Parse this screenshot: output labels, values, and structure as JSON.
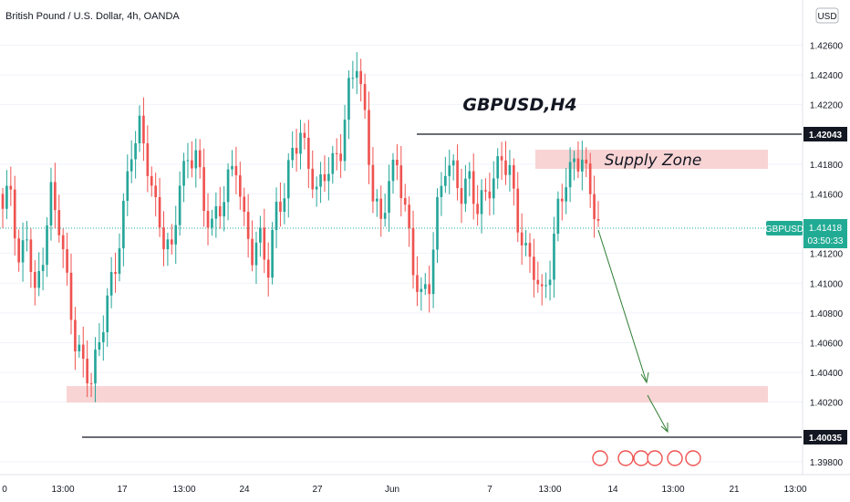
{
  "header": {
    "symbol_title": "British Pound / U.S. Dollar, 4h, OANDA",
    "currency_button": "USD"
  },
  "colors": {
    "up": "#26a69a",
    "down": "#ef5350",
    "zone_fill": "#f8d4d4",
    "current_price": "#22ab94",
    "line": "#131722",
    "arrow": "#2e7d32"
  },
  "chart_data": {
    "type": "candlestick",
    "title": "GBPUSD,H4",
    "y_ticks": [
      "1.42600",
      "1.42400",
      "1.42200",
      "1.41800",
      "1.41600",
      "1.41200",
      "1.41000",
      "1.40800",
      "1.40600",
      "1.40400",
      "1.40200",
      "1.39800"
    ],
    "y_range": [
      1.3975,
      1.4283
    ],
    "x_ticks": [
      "0",
      "13:00",
      "17",
      "13:00",
      "24",
      "27",
      "Jun",
      "7",
      "13:00",
      "14",
      "13:00",
      "21",
      "13:00"
    ],
    "levels": [
      {
        "label": "1.42043",
        "value": 1.42043
      },
      {
        "label": "1.40035",
        "value": 1.40035
      }
    ],
    "current_price": {
      "symbol": "GBPUSD",
      "value": "1.41418",
      "countdown": "03:50:33"
    },
    "zones": [
      {
        "label": "Supply Zone",
        "low": 1.4182,
        "high": 1.4193
      },
      {
        "label": "",
        "low": 1.4027,
        "high": 1.4036
      }
    ],
    "arrow_targets": [
      1.404,
      1.4003
    ],
    "ohlc_seed": [
      1.415,
      1.4165,
      1.411,
      1.4135,
      1.409,
      1.412,
      1.416,
      1.414,
      1.41,
      1.406,
      1.4045,
      1.4035,
      1.406,
      1.409,
      1.411,
      1.415,
      1.419,
      1.4205,
      1.418,
      1.415,
      1.413,
      1.412,
      1.417,
      1.418,
      1.419,
      1.415,
      1.414,
      1.415,
      1.417,
      1.418,
      1.414,
      1.412,
      1.413,
      1.411,
      1.415,
      1.416,
      1.419,
      1.42,
      1.418,
      1.416,
      1.4175,
      1.418,
      1.419,
      1.423,
      1.425,
      1.421,
      1.416,
      1.414,
      1.417,
      1.418,
      1.415,
      1.411,
      1.409,
      1.41,
      1.415,
      1.418,
      1.4175,
      1.416,
      1.417,
      1.415,
      1.416,
      1.417,
      1.4185,
      1.4175,
      1.414,
      1.412,
      1.411,
      1.409,
      1.411,
      1.415,
      1.417,
      1.418,
      1.4185,
      1.416,
      1.4142
    ]
  }
}
